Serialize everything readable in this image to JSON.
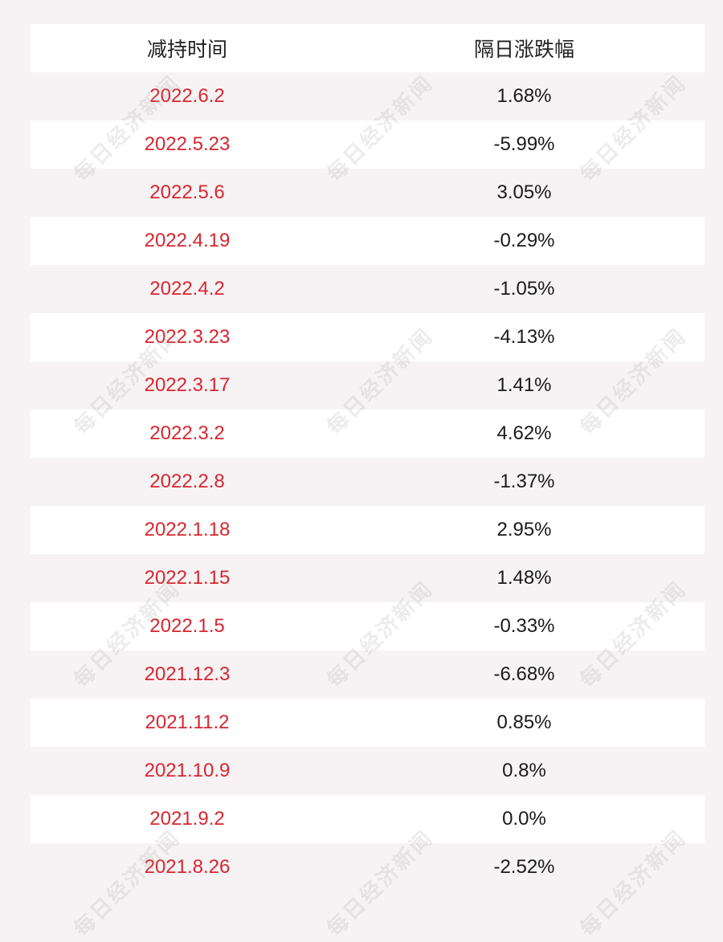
{
  "table": {
    "headers": [
      "减持时间",
      "隔日涨跌幅"
    ],
    "rows": [
      {
        "date": "2022.6.2",
        "change": "1.68%"
      },
      {
        "date": "2022.5.23",
        "change": "-5.99%"
      },
      {
        "date": "2022.5.6",
        "change": "3.05%"
      },
      {
        "date": "2022.4.19",
        "change": "-0.29%"
      },
      {
        "date": "2022.4.2",
        "change": "-1.05%"
      },
      {
        "date": "2022.3.23",
        "change": "-4.13%"
      },
      {
        "date": "2022.3.17",
        "change": "1.41%"
      },
      {
        "date": "2022.3.2",
        "change": "4.62%"
      },
      {
        "date": "2022.2.8",
        "change": "-1.37%"
      },
      {
        "date": "2022.1.18",
        "change": "2.95%"
      },
      {
        "date": "2022.1.15",
        "change": "1.48%"
      },
      {
        "date": "2022.1.5",
        "change": "-0.33%"
      },
      {
        "date": "2021.12.3",
        "change": "-6.68%"
      },
      {
        "date": "2021.11.2",
        "change": "0.85%"
      },
      {
        "date": "2021.10.9",
        "change": "0.8%"
      },
      {
        "date": "2021.9.2",
        "change": "0.0%"
      },
      {
        "date": "2021.8.26",
        "change": "-2.52%"
      }
    ]
  },
  "watermark": {
    "text": "每日经济新闻"
  },
  "colors": {
    "date_text": "#d7262f",
    "change_text": "#1a1a1a",
    "row_white": "#ffffff",
    "row_tint": "#f7f3f4"
  }
}
